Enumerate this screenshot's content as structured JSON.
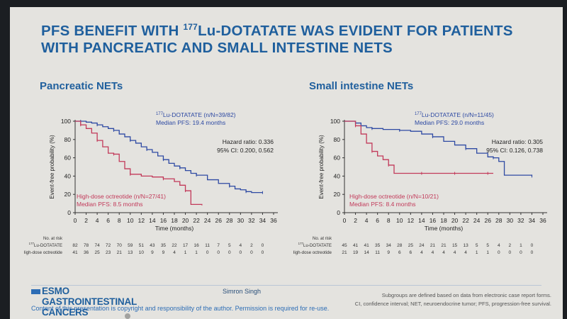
{
  "title": {
    "line1_pre": "PFS BENEFIT WITH ",
    "line1_sup": "177",
    "line1_post": "Lu-DOTATATE WAS EVIDENT FOR PATIENTS",
    "line2": "WITH PANCREATIC AND SMALL INTESTINE NETS"
  },
  "footer": {
    "logo_text": "ESMO GASTROINTESTINAL CANCERS",
    "presenter": "Simron Singh",
    "copyright": "Content of this presentation is copyright and responsibility of the author. Permission is required for re-use.",
    "footnote1": "Subgroups are defined based on data from electronic case report forms.",
    "footnote2": "CI, confidence interval; NET, neuroendocrine tumor; PFS, progression-free survival."
  },
  "colors": {
    "lu": "#2e4aa3",
    "octreotide": "#c23a5a",
    "title": "#1f5f9d"
  },
  "chart_data": [
    {
      "type": "line",
      "panel_title": "Pancreatic NETs",
      "xlabel": "Time (months)",
      "ylabel": "Event-free probability (%)",
      "xlim": [
        0,
        36
      ],
      "ylim": [
        0,
        100
      ],
      "xticks": [
        0,
        2,
        4,
        6,
        8,
        10,
        12,
        14,
        16,
        18,
        20,
        22,
        24,
        26,
        28,
        30,
        32,
        34,
        36
      ],
      "yticks": [
        0,
        20,
        40,
        60,
        80,
        100
      ],
      "series": [
        {
          "key": "lu",
          "label_sup": "177",
          "label": "Lu-DOTATATE (n/N=39/82)",
          "median": "Median PFS: 19.4 months",
          "points": [
            [
              0,
              100
            ],
            [
              1,
              100
            ],
            [
              2,
              99
            ],
            [
              3,
              98
            ],
            [
              4,
              96
            ],
            [
              5,
              94
            ],
            [
              6,
              92
            ],
            [
              7,
              90
            ],
            [
              8,
              86
            ],
            [
              9,
              83
            ],
            [
              10,
              79
            ],
            [
              11,
              76
            ],
            [
              12,
              72
            ],
            [
              13,
              69
            ],
            [
              14,
              66
            ],
            [
              15,
              62
            ],
            [
              16,
              58
            ],
            [
              17,
              54
            ],
            [
              18,
              51
            ],
            [
              19,
              49
            ],
            [
              20,
              46
            ],
            [
              21,
              43
            ],
            [
              22,
              41
            ],
            [
              24,
              36
            ],
            [
              26,
              32
            ],
            [
              28,
              29
            ],
            [
              29,
              26
            ],
            [
              30,
              25
            ],
            [
              31,
              23
            ],
            [
              32,
              22
            ],
            [
              33,
              22
            ],
            [
              34,
              22
            ]
          ]
        },
        {
          "key": "octreotide",
          "label": "High-dose octreotide (n/N=27/41)",
          "median": "Median PFS: 8.5 months",
          "points": [
            [
              0,
              100
            ],
            [
              1,
              96
            ],
            [
              2,
              92
            ],
            [
              3,
              87
            ],
            [
              4,
              79
            ],
            [
              5,
              72
            ],
            [
              6,
              65
            ],
            [
              7,
              64
            ],
            [
              8,
              56
            ],
            [
              9,
              48
            ],
            [
              10,
              42
            ],
            [
              12,
              40
            ],
            [
              14,
              39
            ],
            [
              16,
              37
            ],
            [
              18,
              34
            ],
            [
              19,
              30
            ],
            [
              20,
              24
            ],
            [
              21,
              9
            ],
            [
              23,
              8
            ]
          ]
        }
      ],
      "hazard_ratio": "Hazard ratio: 0.336",
      "ci": "95% CI: 0.200, 0.562",
      "risk_header": "No. at risk",
      "risk_rows": [
        {
          "label_sup": "177",
          "label": "Lu-DOTATATE",
          "values": [
            "82",
            "78",
            "74",
            "72",
            "70",
            "59",
            "51",
            "43",
            "35",
            "22",
            "17",
            "16",
            "11",
            "7",
            "5",
            "4",
            "2",
            "0"
          ]
        },
        {
          "label": "High-dose octreotide",
          "values": [
            "41",
            "36",
            "25",
            "23",
            "21",
            "13",
            "10",
            "9",
            "9",
            "4",
            "1",
            "1",
            "0",
            "0",
            "0",
            "0",
            "0",
            "0"
          ]
        }
      ]
    },
    {
      "type": "line",
      "panel_title": "Small intestine NETs",
      "xlabel": "Time (months)",
      "ylabel": "Event-free probability (%)",
      "xlim": [
        0,
        36
      ],
      "ylim": [
        0,
        100
      ],
      "xticks": [
        0,
        2,
        4,
        6,
        8,
        10,
        12,
        14,
        16,
        18,
        20,
        22,
        24,
        26,
        28,
        30,
        32,
        34,
        36
      ],
      "yticks": [
        0,
        20,
        40,
        60,
        80,
        100
      ],
      "series": [
        {
          "key": "lu",
          "label_sup": "177",
          "label": "Lu-DOTATATE (n/N=11/45)",
          "median": "Median PFS: 29.0 months",
          "points": [
            [
              0,
              100
            ],
            [
              2,
              98
            ],
            [
              3,
              95
            ],
            [
              4,
              93
            ],
            [
              5,
              92
            ],
            [
              7,
              91
            ],
            [
              9,
              91
            ],
            [
              10,
              90
            ],
            [
              12,
              89
            ],
            [
              14,
              86
            ],
            [
              16,
              83
            ],
            [
              18,
              78
            ],
            [
              20,
              74
            ],
            [
              22,
              70
            ],
            [
              24,
              65
            ],
            [
              26,
              61
            ],
            [
              27,
              60
            ],
            [
              28,
              56
            ],
            [
              29,
              41
            ],
            [
              34,
              40
            ]
          ]
        },
        {
          "key": "octreotide",
          "label": "High-dose octreotide (n/N=10/21)",
          "median": "Median PFS: 8.4 months",
          "points": [
            [
              0,
              100
            ],
            [
              2,
              95
            ],
            [
              3,
              86
            ],
            [
              4,
              76
            ],
            [
              5,
              67
            ],
            [
              6,
              62
            ],
            [
              7,
              58
            ],
            [
              8,
              52
            ],
            [
              9,
              43
            ],
            [
              12,
              43
            ],
            [
              14,
              43
            ],
            [
              16,
              43
            ],
            [
              18,
              43
            ],
            [
              20,
              43
            ],
            [
              22,
              43
            ],
            [
              24,
              43
            ],
            [
              26,
              43
            ],
            [
              27,
              43
            ]
          ]
        }
      ],
      "hazard_ratio": "Hazard ratio: 0.305",
      "ci": "95% CI: 0.126, 0.738",
      "risk_header": "No. at risk",
      "risk_rows": [
        {
          "label_sup": "177",
          "label": "Lu-DOTATATE",
          "values": [
            "45",
            "41",
            "41",
            "35",
            "34",
            "28",
            "25",
            "24",
            "21",
            "21",
            "15",
            "13",
            "5",
            "5",
            "4",
            "2",
            "1",
            "0"
          ]
        },
        {
          "label": "High-dose octreotide",
          "values": [
            "21",
            "19",
            "14",
            "11",
            "9",
            "6",
            "6",
            "4",
            "4",
            "4",
            "4",
            "4",
            "1",
            "1",
            "0",
            "0",
            "0",
            "0"
          ]
        }
      ]
    }
  ]
}
